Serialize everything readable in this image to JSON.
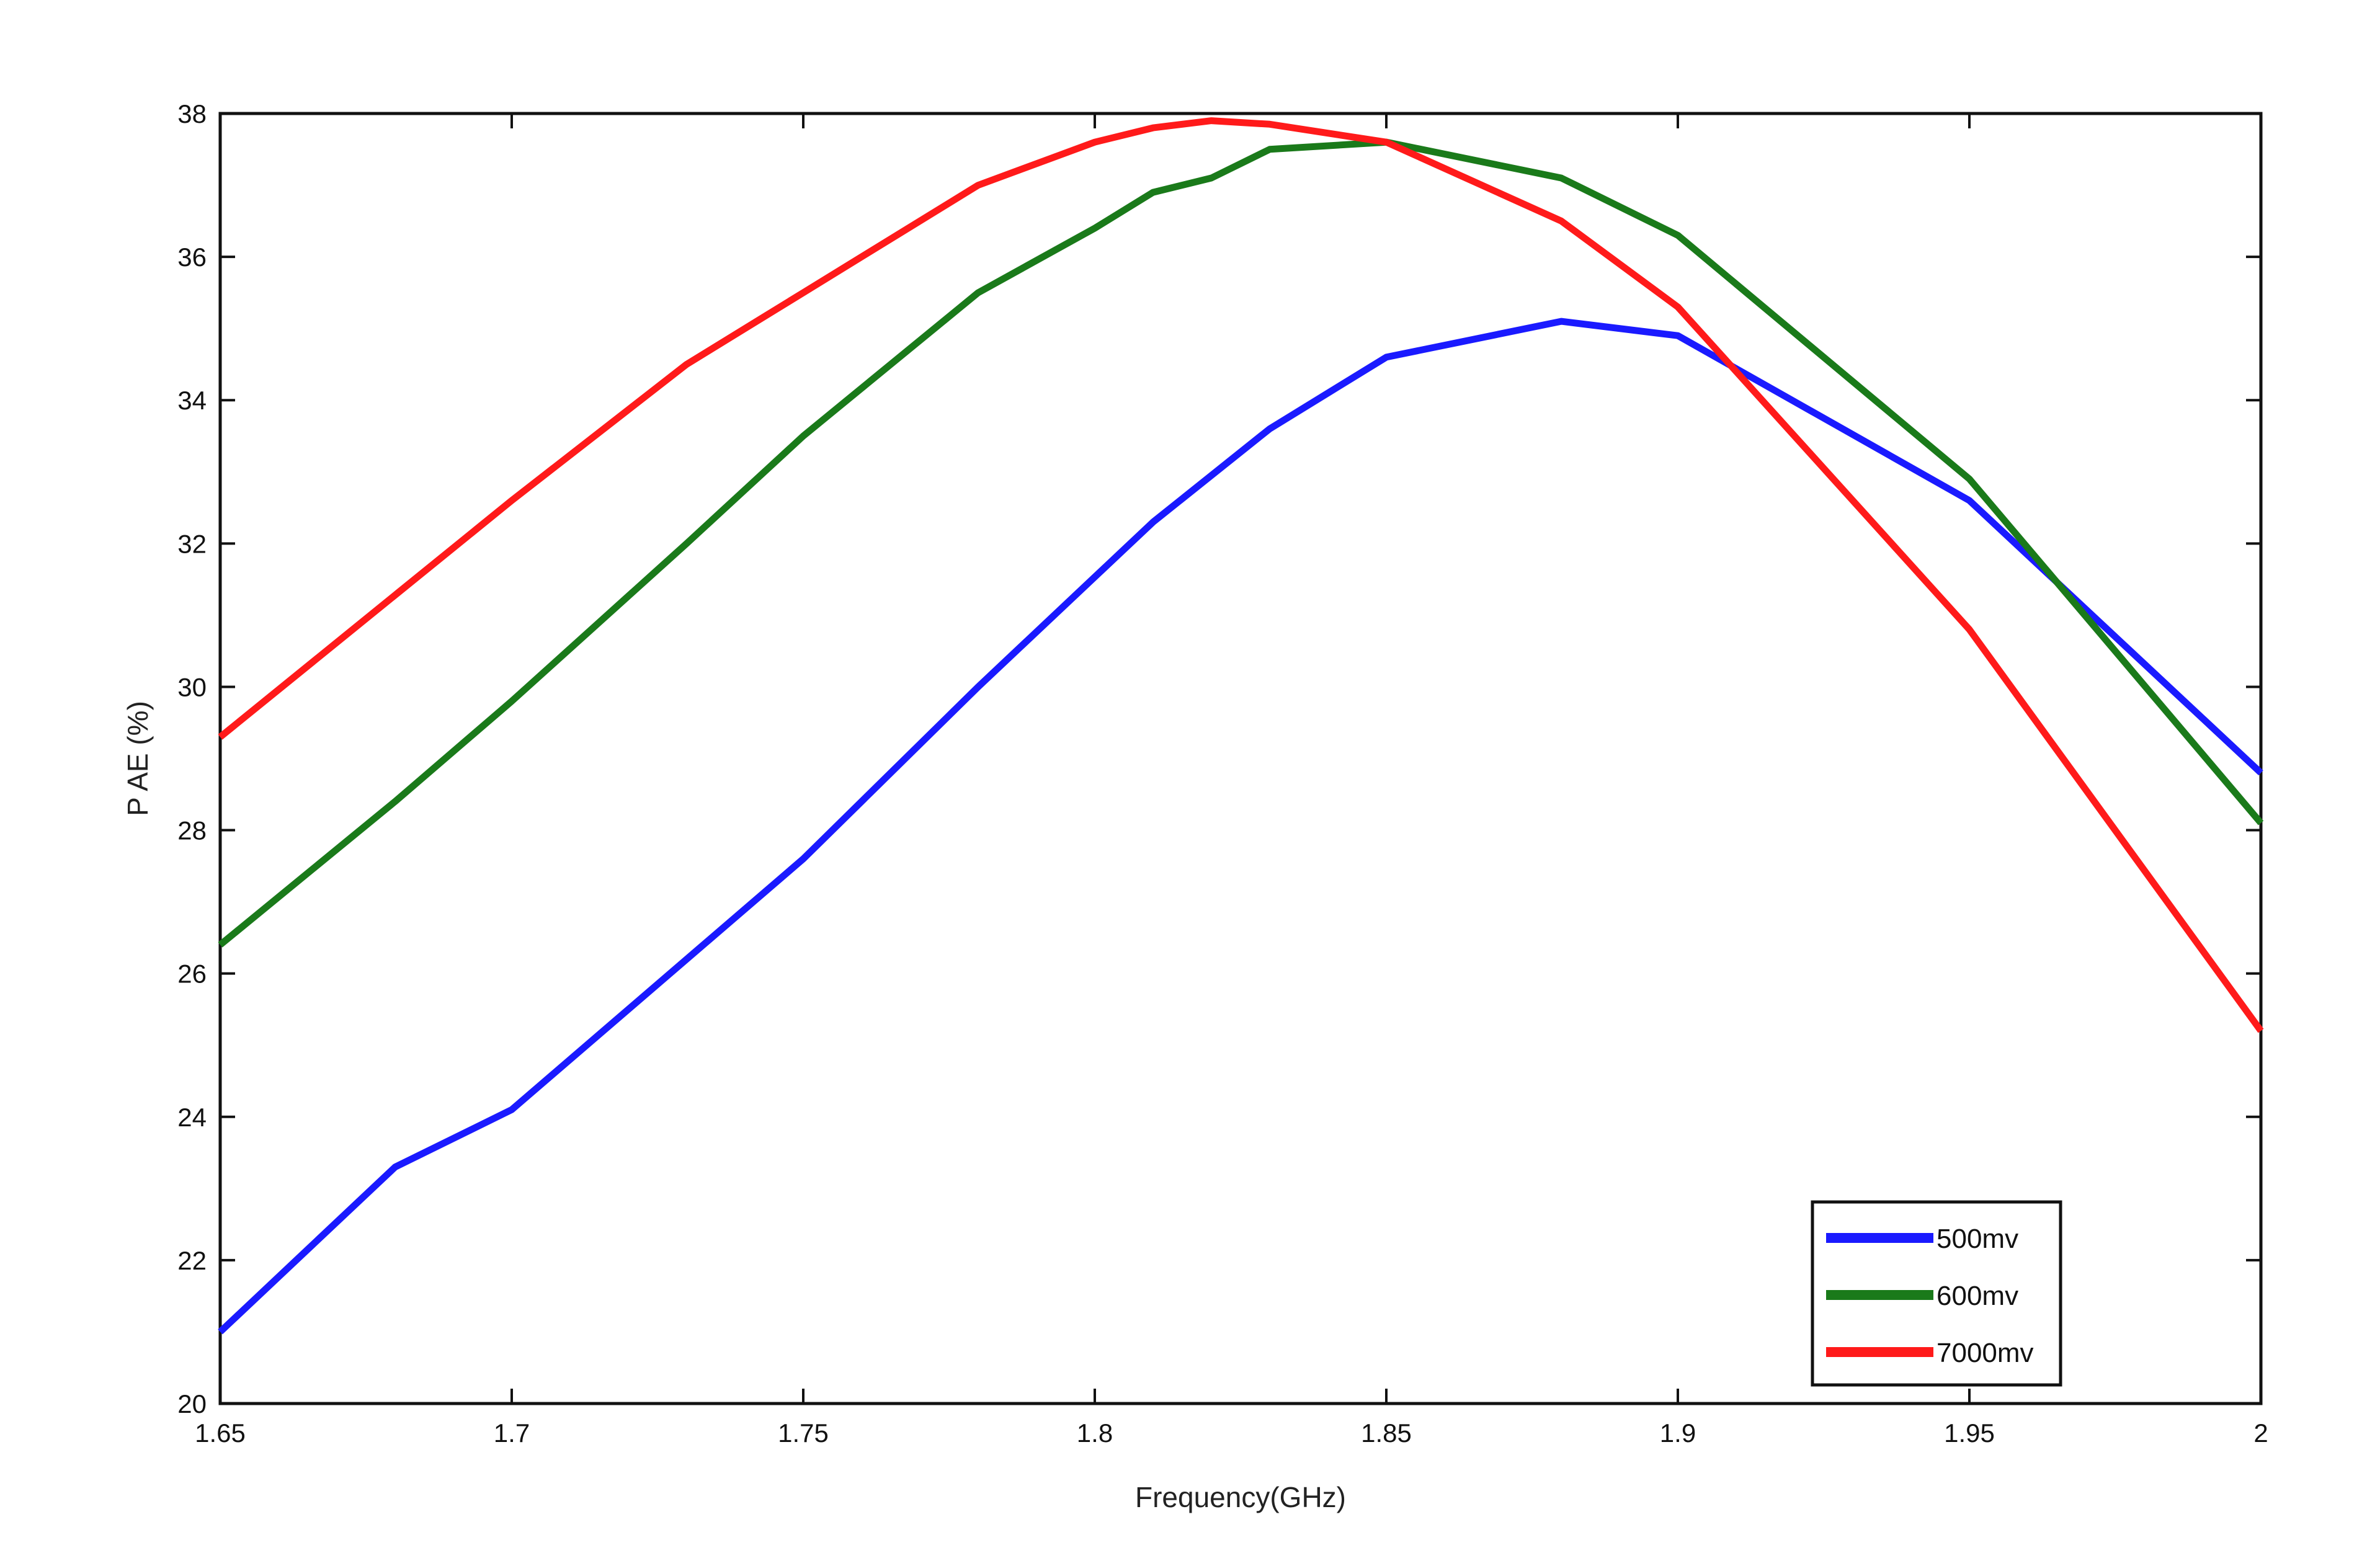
{
  "chart_data": {
    "type": "line",
    "xlabel": "Frequency(GHz)",
    "ylabel": "P AE (%)",
    "xlim": [
      1.65,
      2
    ],
    "ylim": [
      20,
      38
    ],
    "xticks": [
      1.65,
      1.7,
      1.75,
      1.8,
      1.85,
      1.9,
      1.95,
      2
    ],
    "xtick_labels": [
      "1.65",
      "1.7",
      "1.75",
      "1.8",
      "1.85",
      "1.9",
      "1.95",
      "2"
    ],
    "yticks": [
      20,
      22,
      24,
      26,
      28,
      30,
      32,
      34,
      36,
      38
    ],
    "ytick_labels": [
      "20",
      "22",
      "24",
      "26",
      "28",
      "30",
      "32",
      "34",
      "36",
      "38"
    ],
    "grid": false,
    "legend_position": "bottom-right",
    "series": [
      {
        "name": "500mv",
        "color": "#1a1aff",
        "x": [
          1.65,
          1.68,
          1.7,
          1.75,
          1.78,
          1.81,
          1.83,
          1.85,
          1.88,
          1.9,
          1.95,
          2.0
        ],
        "y": [
          21.0,
          23.3,
          24.1,
          27.6,
          30.0,
          32.3,
          33.6,
          34.6,
          35.1,
          34.9,
          32.6,
          28.8
        ]
      },
      {
        "name": "600mv",
        "color": "#1a7a1a",
        "x": [
          1.65,
          1.68,
          1.7,
          1.73,
          1.75,
          1.78,
          1.8,
          1.81,
          1.82,
          1.83,
          1.85,
          1.88,
          1.9,
          1.95,
          2.0
        ],
        "y": [
          26.4,
          28.4,
          29.8,
          32.0,
          33.5,
          35.5,
          36.4,
          36.9,
          37.1,
          37.5,
          37.6,
          37.1,
          36.3,
          32.9,
          28.1
        ]
      },
      {
        "name": "7000mv",
        "color": "#ff1a1a",
        "x": [
          1.65,
          1.7,
          1.73,
          1.75,
          1.78,
          1.8,
          1.81,
          1.82,
          1.83,
          1.85,
          1.88,
          1.9,
          1.95,
          2.0
        ],
        "y": [
          29.3,
          32.6,
          34.5,
          35.5,
          37.0,
          37.6,
          37.8,
          37.9,
          37.85,
          37.6,
          36.5,
          35.3,
          30.8,
          25.2
        ]
      }
    ]
  }
}
